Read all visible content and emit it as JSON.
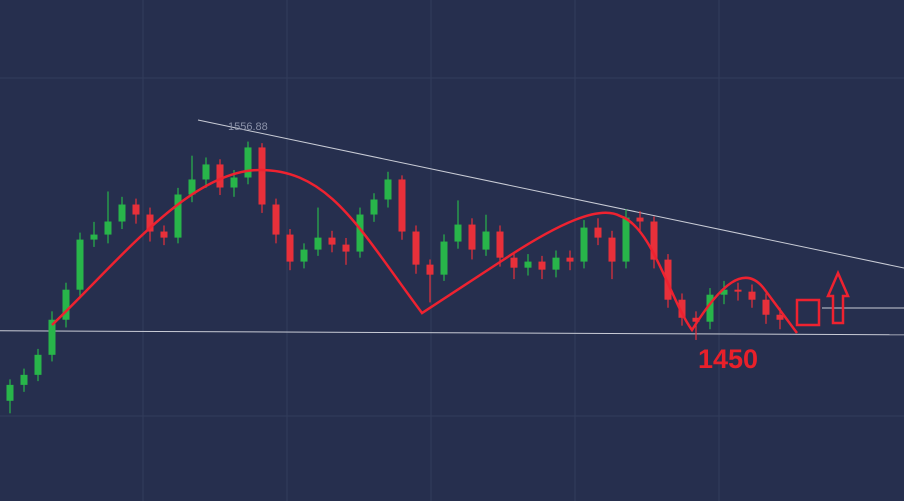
{
  "chart_data": {
    "type": "candlestick",
    "open": [
      1412.0,
      1420.9,
      1426.5,
      1437.7,
      1457.3,
      1474.1,
      1502.1,
      1504.9,
      1512.2,
      1521.7,
      1516.1,
      1506.6,
      1503.2,
      1527.3,
      1535.7,
      1544.1,
      1531.2,
      1536.8,
      1553.6,
      1521.7,
      1504.9,
      1489.8,
      1496.5,
      1503.2,
      1499.3,
      1495.4,
      1516.1,
      1524.5,
      1535.7,
      1506.6,
      1488.1,
      1482.5,
      1501.0,
      1510.5,
      1496.5,
      1506.6,
      1492.0,
      1486.4,
      1489.8,
      1485.3,
      1492.0,
      1489.8,
      1508.8,
      1503.2,
      1489.8,
      1514.4,
      1512.2,
      1490.9,
      1468.5,
      1458.4,
      1456.2,
      1471.3,
      1474.1,
      1473.0,
      1468.5,
      1460.1
    ],
    "high": [
      1424,
      1430,
      1441,
      1462,
      1478,
      1506,
      1512,
      1529,
      1526,
      1525,
      1520,
      1510,
      1531,
      1549,
      1548,
      1547,
      1541,
      1556.88,
      1556,
      1525,
      1508,
      1500,
      1520,
      1507,
      1503,
      1520,
      1528,
      1540,
      1538,
      1510,
      1491,
      1505,
      1524,
      1514,
      1516,
      1510,
      1495,
      1494,
      1493,
      1496,
      1496,
      1513,
      1514,
      1507,
      1519,
      1518,
      1515,
      1494,
      1472,
      1462,
      1475,
      1479,
      1478,
      1477,
      1472,
      1464
    ],
    "low": [
      1405,
      1417,
      1423,
      1434,
      1453,
      1470,
      1498,
      1500,
      1508,
      1511,
      1501,
      1499,
      1500,
      1523,
      1531,
      1527,
      1526,
      1533,
      1517,
      1500,
      1485,
      1486,
      1493,
      1495,
      1488,
      1492,
      1512,
      1520,
      1502,
      1483,
      1467,
      1479,
      1497,
      1491,
      1493,
      1487,
      1480,
      1482,
      1480,
      1481,
      1485,
      1486,
      1499,
      1480,
      1486,
      1507,
      1486,
      1464,
      1454,
      1446,
      1452,
      1466,
      1468,
      1464,
      1455,
      1452
    ],
    "close": [
      1420.9,
      1426.5,
      1437.7,
      1457.3,
      1474.1,
      1502.1,
      1504.9,
      1512.2,
      1521.7,
      1516.1,
      1506.6,
      1503.2,
      1527.3,
      1535.7,
      1544.1,
      1531.2,
      1536.8,
      1553.6,
      1521.7,
      1504.9,
      1489.8,
      1496.5,
      1503.2,
      1499.3,
      1495.4,
      1516.1,
      1524.5,
      1535.7,
      1506.6,
      1488.1,
      1482.5,
      1501.0,
      1510.5,
      1496.5,
      1506.6,
      1492.0,
      1486.4,
      1489.8,
      1485.3,
      1492.0,
      1489.8,
      1508.8,
      1503.2,
      1489.8,
      1514.4,
      1512.2,
      1490.9,
      1468.5,
      1458.4,
      1456.2,
      1471.3,
      1474.1,
      1473.0,
      1468.5,
      1460.1,
      1457.3
    ],
    "support": 1450,
    "ylim": [
      1356,
      1636
    ],
    "up_color": "#28b54a",
    "down_color": "#e8303a"
  }
}
